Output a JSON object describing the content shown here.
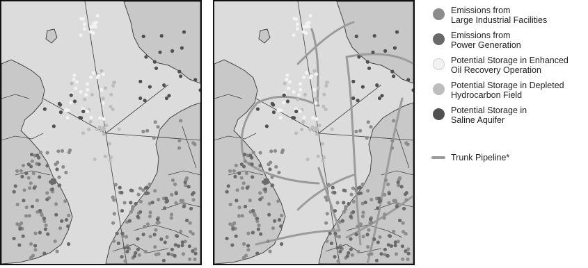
{
  "colors": {
    "sea": "#dcdcdc",
    "land": "#c8c8c8",
    "border": "#444444",
    "industrial": "#8c8c8c",
    "power": "#6a6a6a",
    "eor": "#f2f2f2",
    "depleted": "#bdbdbd",
    "saline": "#505050",
    "pipeline": "#9b9b9b"
  },
  "legend": {
    "items": [
      {
        "key": "industrial",
        "label_line1": "Emissions from",
        "label_line2": "Large Industrial Facilities",
        "color": "#8c8c8c"
      },
      {
        "key": "power",
        "label_line1": "Emissions from",
        "label_line2": "Power Generation",
        "color": "#6a6a6a"
      },
      {
        "key": "eor",
        "label_line1": "Potential Storage in Enhanced",
        "label_line2": "Oil Recovery Operation",
        "color": "#f2f2f2"
      },
      {
        "key": "depleted",
        "label_line1": "Potential Storage in Depleted",
        "label_line2": "Hydrocarbon Field",
        "color": "#bdbdbd"
      },
      {
        "key": "saline",
        "label_line1": "Potential Storage in",
        "label_line2": "Saline Aquifer",
        "color": "#505050"
      }
    ],
    "pipeline": {
      "label": "Trunk Pipeline*",
      "color": "#9b9b9b"
    }
  },
  "maps": {
    "left": {
      "panel_name": "map-current",
      "shows_pipelines": false
    },
    "right": {
      "panel_name": "map-with-pipelines",
      "shows_pipelines": true
    }
  }
}
